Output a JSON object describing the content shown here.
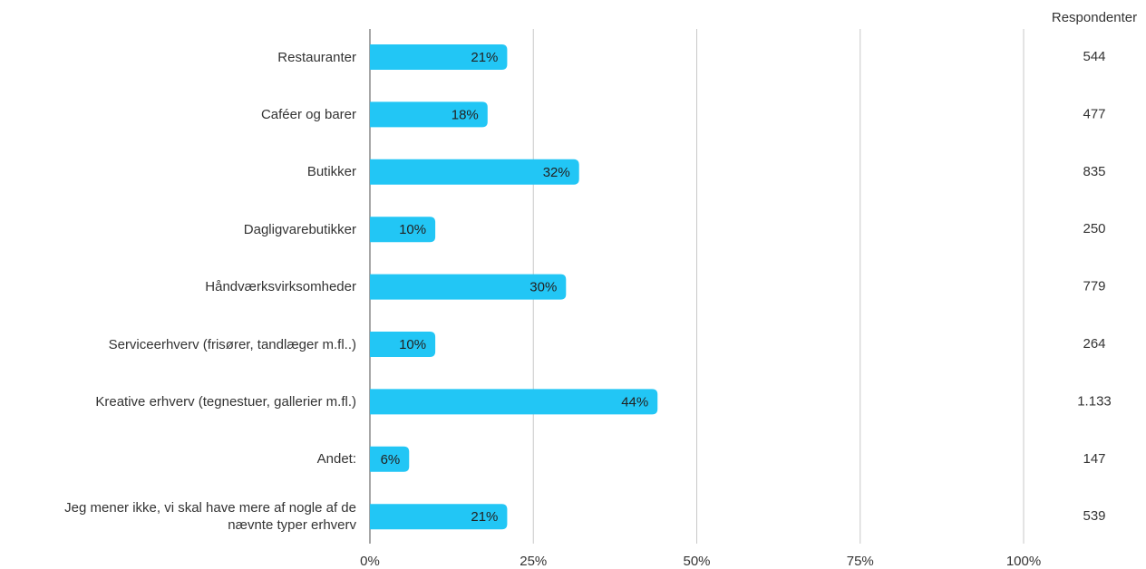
{
  "chart_data": {
    "type": "bar",
    "orientation": "horizontal",
    "color": "#22c6f5",
    "categories": [
      "Restauranter",
      "Caféer og barer",
      "Butikker",
      "Dagligvarebutikker",
      "Håndværksvirksomheder",
      "Serviceerhverv (frisører, tandlæger m.fl..)",
      "Kreative erhverv (tegnestuer, gallerier m.fl.)",
      "Andet:",
      "Jeg mener ikke, vi skal have mere af nogle af de\nnævnte typer erhverv"
    ],
    "values": [
      21,
      18,
      32,
      10,
      30,
      10,
      44,
      6,
      21
    ],
    "value_labels": [
      "21%",
      "18%",
      "32%",
      "10%",
      "30%",
      "10%",
      "44%",
      "6%",
      "21%"
    ],
    "xlim": [
      0,
      100
    ],
    "xticks": [
      {
        "value": 0,
        "label": "0%"
      },
      {
        "value": 25,
        "label": "25%"
      },
      {
        "value": 50,
        "label": "50%"
      },
      {
        "value": 75,
        "label": "75%"
      },
      {
        "value": 100,
        "label": "100%"
      }
    ],
    "grid": true,
    "respondents": {
      "name": "Respondenter",
      "values": [
        544,
        477,
        835,
        250,
        779,
        264,
        1133,
        147,
        539
      ],
      "value_labels": [
        "544",
        "477",
        "835",
        "250",
        "779",
        "264",
        "1.133",
        "147",
        "539"
      ]
    }
  }
}
